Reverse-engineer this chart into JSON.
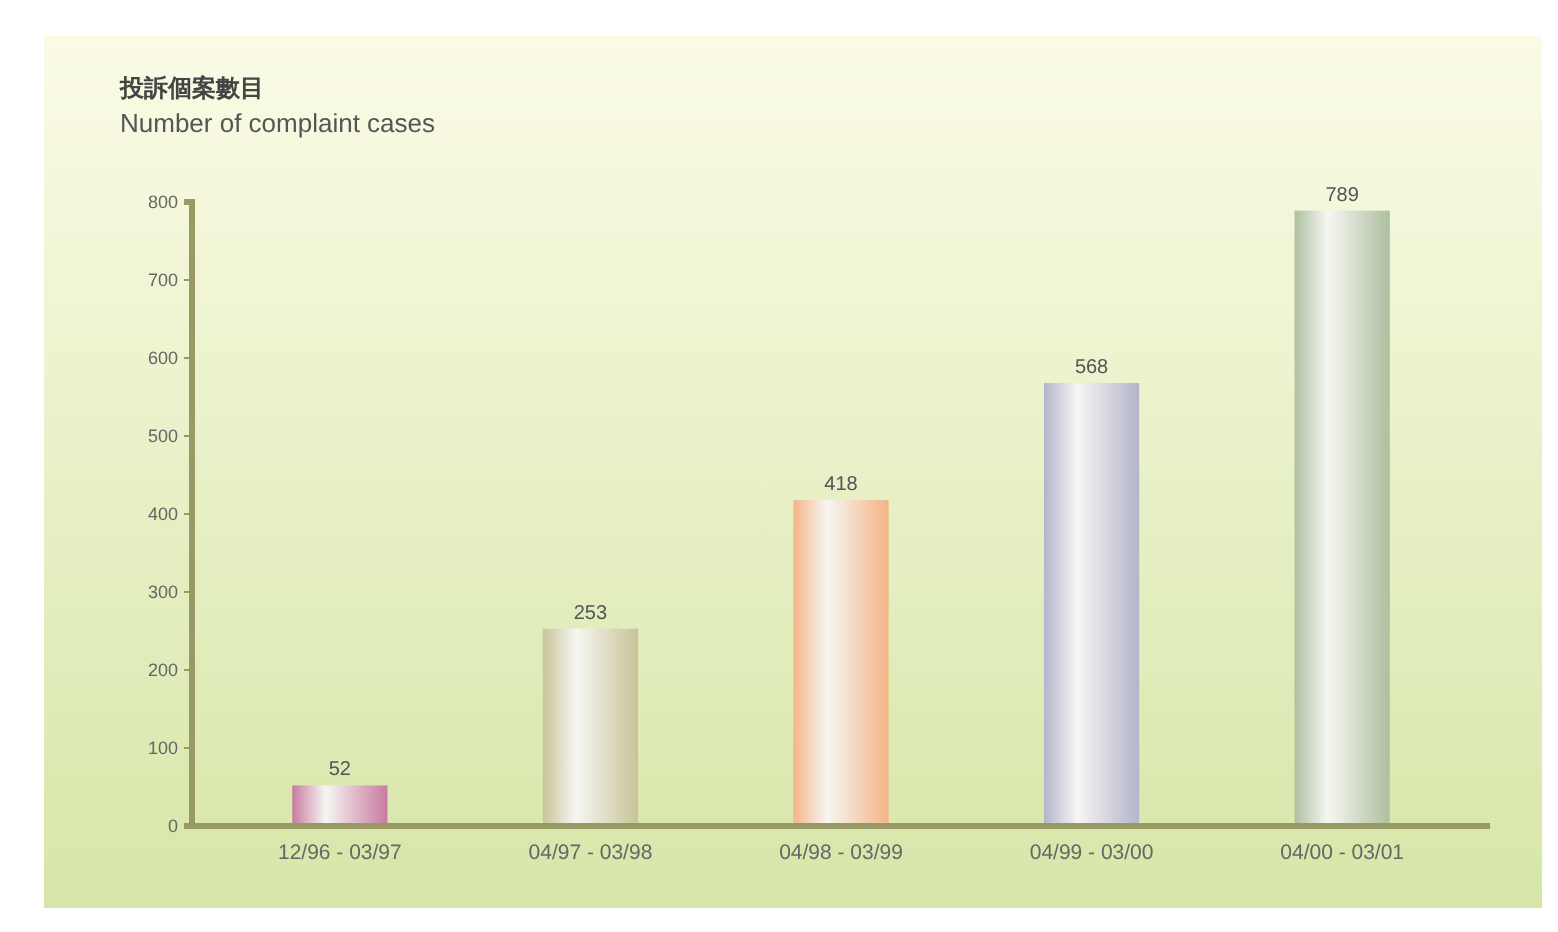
{
  "chart_data": {
    "type": "bar",
    "title": "投訴個案數目",
    "subtitle": "Number of complaint cases",
    "categories": [
      "12/96 - 03/97",
      "04/97 - 03/98",
      "04/98 - 03/99",
      "04/99 - 03/00",
      "04/00 - 03/01"
    ],
    "values": [
      52,
      253,
      418,
      568,
      789
    ],
    "colors": [
      "#c87aa0",
      "#c8c498",
      "#f4b486",
      "#b4b4cc",
      "#aec0a0"
    ],
    "ylim": [
      0,
      800
    ],
    "yticks": [
      0,
      100,
      200,
      300,
      400,
      500,
      600,
      700,
      800
    ],
    "data_labels": true
  }
}
